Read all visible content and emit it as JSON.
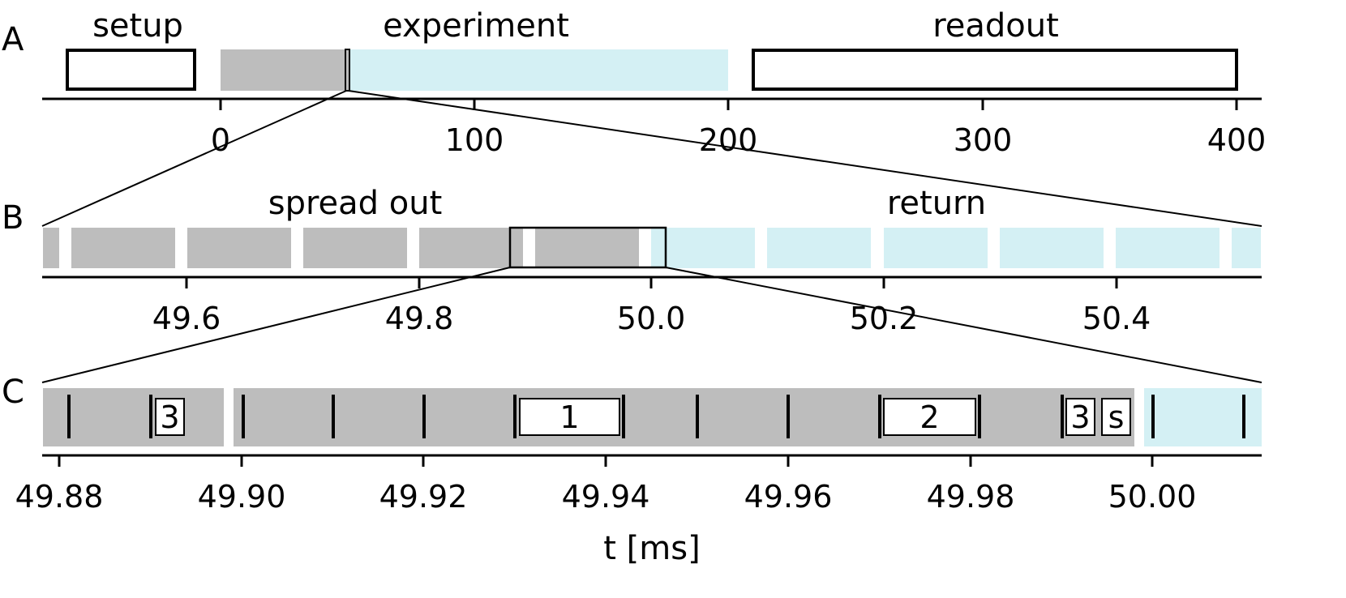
{
  "colors": {
    "gray": "#bdbdbd",
    "cyan": "#d4f0f4",
    "ink": "#000000"
  },
  "panels": {
    "a": {
      "letter": "A",
      "phases": {
        "setup": "setup",
        "experiment": "experiment",
        "readout": "readout"
      },
      "ticks": [
        "0",
        "100",
        "200",
        "300",
        "400"
      ]
    },
    "b": {
      "letter": "B",
      "phases": {
        "spread_out": "spread out",
        "return": "return"
      },
      "ticks": [
        "49.6",
        "49.8",
        "50.0",
        "50.2",
        "50.4"
      ]
    },
    "c": {
      "letter": "C",
      "boxes": {
        "b3a": "3",
        "b1": "1",
        "b2": "2",
        "b3b": "3",
        "bs": "s"
      },
      "ticks": [
        "49.88",
        "49.90",
        "49.92",
        "49.94",
        "49.96",
        "49.98",
        "50.00"
      ],
      "axis_label": "t [ms]"
    }
  }
}
